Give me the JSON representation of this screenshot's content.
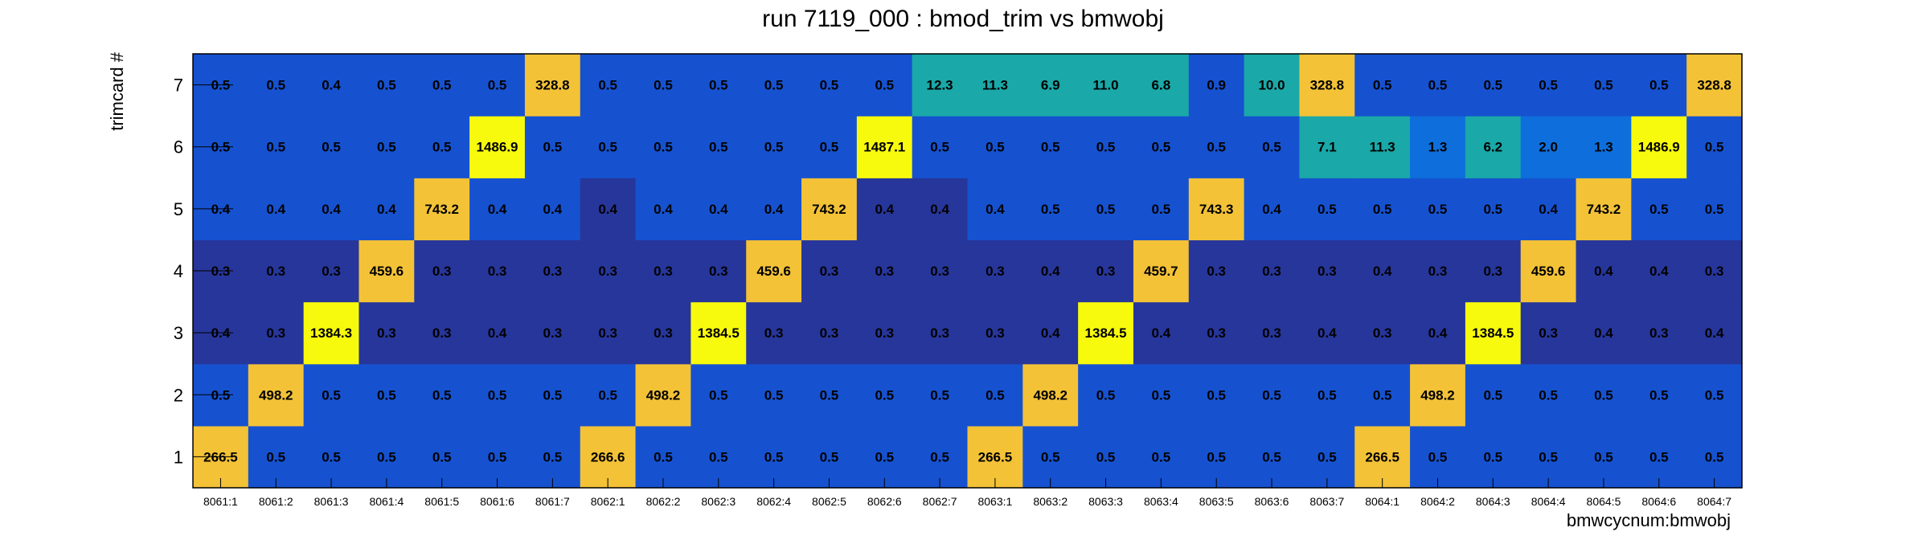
{
  "chart_data": {
    "type": "heatmap",
    "title": "run 7119_000 : bmod_trim vs bmwobj",
    "xlabel": "bmwcycnum:bmwobj",
    "ylabel": "trimcard #",
    "x_categories": [
      "8061:1",
      "8061:2",
      "8061:3",
      "8061:4",
      "8061:5",
      "8061:6",
      "8061:7",
      "8062:1",
      "8062:2",
      "8062:3",
      "8062:4",
      "8062:5",
      "8062:6",
      "8062:7",
      "8063:1",
      "8063:2",
      "8063:3",
      "8063:4",
      "8063:5",
      "8063:6",
      "8063:7",
      "8064:1",
      "8064:2",
      "8064:3",
      "8064:4",
      "8064:5",
      "8064:6",
      "8064:7"
    ],
    "y_categories": [
      "1",
      "2",
      "3",
      "4",
      "5",
      "6",
      "7"
    ],
    "values": [
      [
        "266.5",
        "0.5",
        "0.5",
        "0.5",
        "0.5",
        "0.5",
        "0.5",
        "266.6",
        "0.5",
        "0.5",
        "0.5",
        "0.5",
        "0.5",
        "0.5",
        "266.5",
        "0.5",
        "0.5",
        "0.5",
        "0.5",
        "0.5",
        "0.5",
        "266.5",
        "0.5",
        "0.5",
        "0.5",
        "0.5",
        "0.5",
        "0.5"
      ],
      [
        "0.5",
        "498.2",
        "0.5",
        "0.5",
        "0.5",
        "0.5",
        "0.5",
        "0.5",
        "498.2",
        "0.5",
        "0.5",
        "0.5",
        "0.5",
        "0.5",
        "0.5",
        "498.2",
        "0.5",
        "0.5",
        "0.5",
        "0.5",
        "0.5",
        "0.5",
        "498.2",
        "0.5",
        "0.5",
        "0.5",
        "0.5",
        "0.5"
      ],
      [
        "0.4",
        "0.3",
        "1384.3",
        "0.3",
        "0.3",
        "0.4",
        "0.3",
        "0.3",
        "0.3",
        "1384.5",
        "0.3",
        "0.3",
        "0.3",
        "0.3",
        "0.3",
        "0.4",
        "1384.5",
        "0.4",
        "0.3",
        "0.3",
        "0.4",
        "0.3",
        "0.4",
        "1384.5",
        "0.3",
        "0.4",
        "0.3",
        "0.4"
      ],
      [
        "0.3",
        "0.3",
        "0.3",
        "459.6",
        "0.3",
        "0.3",
        "0.3",
        "0.3",
        "0.3",
        "0.3",
        "459.6",
        "0.3",
        "0.3",
        "0.3",
        "0.3",
        "0.4",
        "0.3",
        "459.7",
        "0.3",
        "0.3",
        "0.3",
        "0.4",
        "0.3",
        "0.3",
        "459.6",
        "0.4",
        "0.4",
        "0.3"
      ],
      [
        "0.4",
        "0.4",
        "0.4",
        "0.4",
        "743.2",
        "0.4",
        "0.4",
        "0.4",
        "0.4",
        "0.4",
        "0.4",
        "743.2",
        "0.4",
        "0.4",
        "0.4",
        "0.5",
        "0.5",
        "0.5",
        "743.3",
        "0.4",
        "0.5",
        "0.5",
        "0.5",
        "0.5",
        "0.4",
        "743.2",
        "0.5",
        "0.5"
      ],
      [
        "0.5",
        "0.5",
        "0.5",
        "0.5",
        "0.5",
        "1486.9",
        "0.5",
        "0.5",
        "0.5",
        "0.5",
        "0.5",
        "0.5",
        "1487.1",
        "0.5",
        "0.5",
        "0.5",
        "0.5",
        "0.5",
        "0.5",
        "0.5",
        "7.1",
        "11.3",
        "1.3",
        "6.2",
        "2.0",
        "1.3",
        "1486.9",
        "0.5"
      ],
      [
        "0.5",
        "0.5",
        "0.4",
        "0.5",
        "0.5",
        "0.5",
        "328.8",
        "0.5",
        "0.5",
        "0.5",
        "0.5",
        "0.5",
        "0.5",
        "12.3",
        "11.3",
        "6.9",
        "11.0",
        "6.8",
        "0.9",
        "10.0",
        "328.8",
        "0.5",
        "0.5",
        "0.5",
        "0.5",
        "0.5",
        "0.5",
        "328.8"
      ]
    ],
    "colors": {
      "dark": "#27369a",
      "blue": "#1652d0",
      "blue_light": "#0e6fdc",
      "teal": "#1aa8a8",
      "orange": "#f3c237",
      "yellow": "#f8fa0d"
    },
    "grid": false,
    "legend": "none"
  }
}
